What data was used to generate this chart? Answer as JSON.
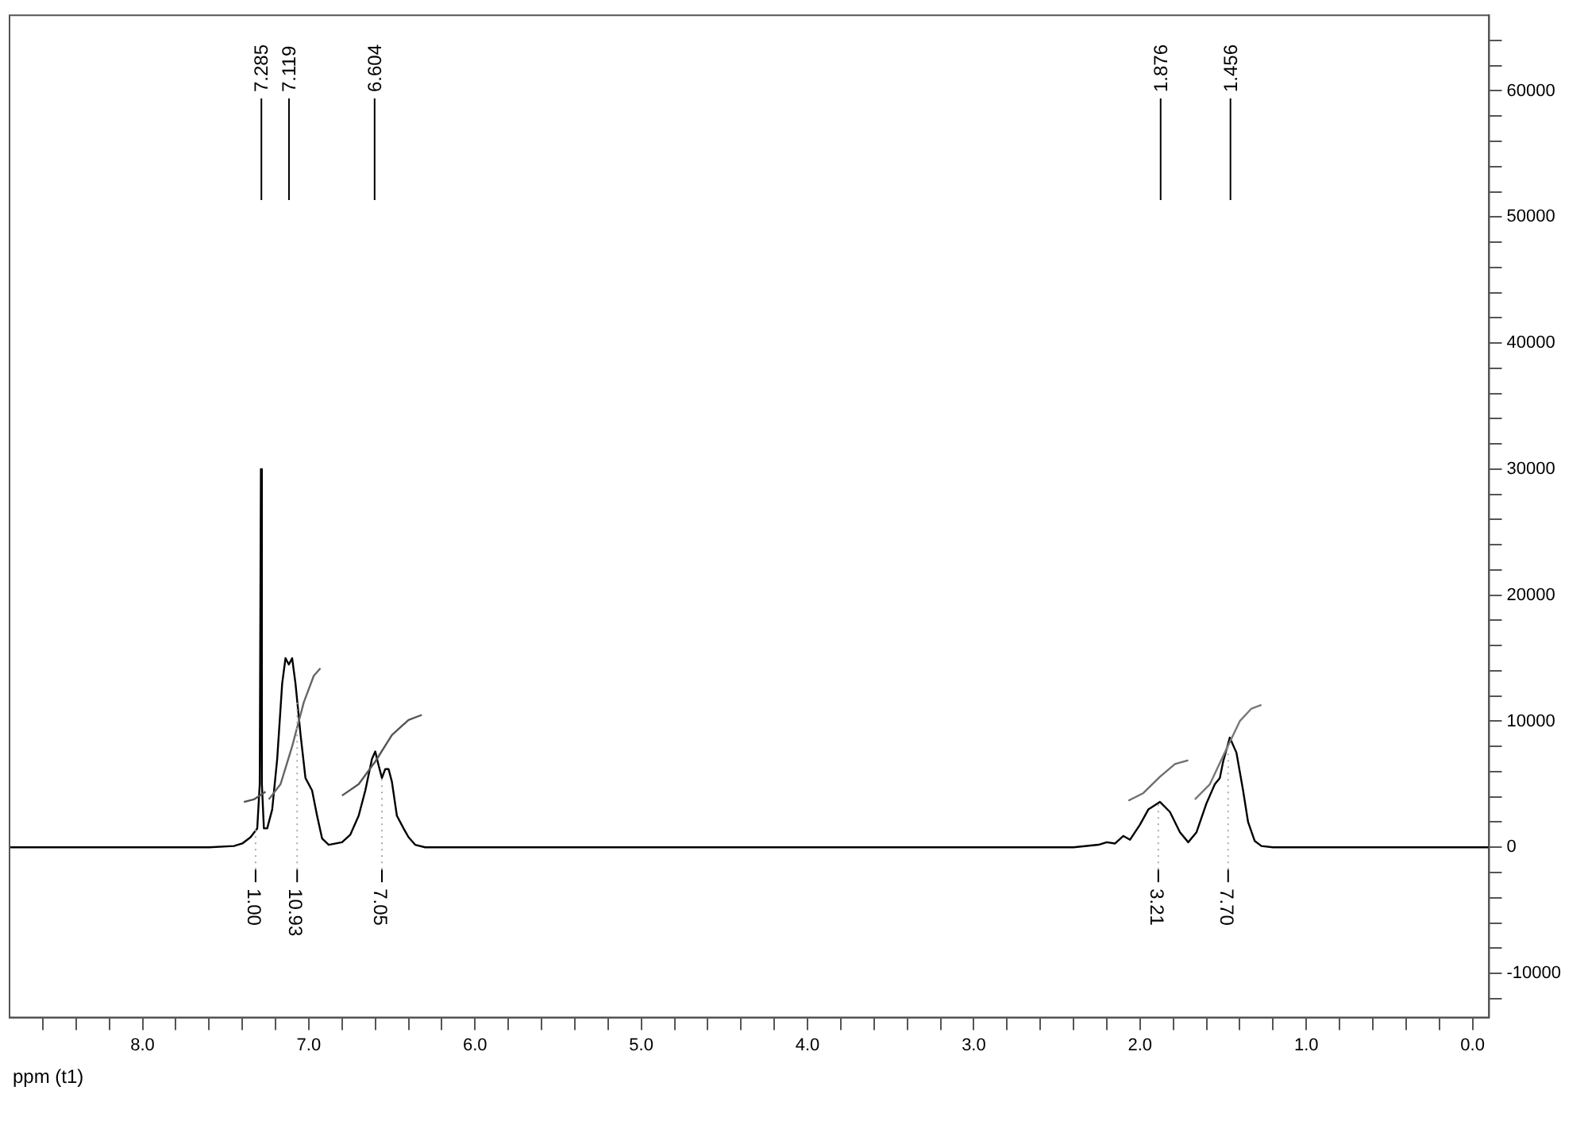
{
  "chart_data": {
    "type": "line",
    "xlabel": "ppm (t1)",
    "xlim": [
      8.8,
      -0.1
    ],
    "xticks": [
      {
        "value": 8.6,
        "label": null
      },
      {
        "value": 8.4,
        "label": null
      },
      {
        "value": 8.2,
        "label": null
      },
      {
        "value": 8.0,
        "label": "8.0"
      },
      {
        "value": 7.8,
        "label": null
      },
      {
        "value": 7.6,
        "label": null
      },
      {
        "value": 7.4,
        "label": null
      },
      {
        "value": 7.2,
        "label": null
      },
      {
        "value": 7.0,
        "label": "7.0"
      },
      {
        "value": 6.8,
        "label": null
      },
      {
        "value": 6.6,
        "label": null
      },
      {
        "value": 6.4,
        "label": null
      },
      {
        "value": 6.2,
        "label": null
      },
      {
        "value": 6.0,
        "label": "6.0"
      },
      {
        "value": 5.8,
        "label": null
      },
      {
        "value": 5.6,
        "label": null
      },
      {
        "value": 5.4,
        "label": null
      },
      {
        "value": 5.2,
        "label": null
      },
      {
        "value": 5.0,
        "label": "5.0"
      },
      {
        "value": 4.8,
        "label": null
      },
      {
        "value": 4.6,
        "label": null
      },
      {
        "value": 4.4,
        "label": null
      },
      {
        "value": 4.2,
        "label": null
      },
      {
        "value": 4.0,
        "label": "4.0"
      },
      {
        "value": 3.8,
        "label": null
      },
      {
        "value": 3.6,
        "label": null
      },
      {
        "value": 3.4,
        "label": null
      },
      {
        "value": 3.2,
        "label": null
      },
      {
        "value": 3.0,
        "label": "3.0"
      },
      {
        "value": 2.8,
        "label": null
      },
      {
        "value": 2.6,
        "label": null
      },
      {
        "value": 2.4,
        "label": null
      },
      {
        "value": 2.2,
        "label": null
      },
      {
        "value": 2.0,
        "label": "2.0"
      },
      {
        "value": 1.8,
        "label": null
      },
      {
        "value": 1.6,
        "label": null
      },
      {
        "value": 1.4,
        "label": null
      },
      {
        "value": 1.2,
        "label": null
      },
      {
        "value": 1.0,
        "label": "1.0"
      },
      {
        "value": 0.8,
        "label": null
      },
      {
        "value": 0.6,
        "label": null
      },
      {
        "value": 0.4,
        "label": null
      },
      {
        "value": 0.2,
        "label": null
      },
      {
        "value": 0.0,
        "label": "0.0"
      }
    ],
    "ylim": [
      -13500,
      66000
    ],
    "yticks": [
      {
        "value": -12000,
        "label": null
      },
      -10000,
      {
        "value": -8000,
        "label": null
      },
      {
        "value": -6000,
        "label": null
      },
      {
        "value": -4000,
        "label": null
      },
      {
        "value": -2000,
        "label": null
      },
      0,
      {
        "value": 2000,
        "label": null
      },
      {
        "value": 4000,
        "label": null
      },
      {
        "value": 6000,
        "label": null
      },
      {
        "value": 8000,
        "label": null
      },
      10000,
      {
        "value": 12000,
        "label": null
      },
      {
        "value": 14000,
        "label": null
      },
      {
        "value": 16000,
        "label": null
      },
      {
        "value": 18000,
        "label": null
      },
      20000,
      {
        "value": 22000,
        "label": null
      },
      {
        "value": 24000,
        "label": null
      },
      {
        "value": 26000,
        "label": null
      },
      {
        "value": 28000,
        "label": null
      },
      30000,
      {
        "value": 32000,
        "label": null
      },
      {
        "value": 34000,
        "label": null
      },
      {
        "value": 36000,
        "label": null
      },
      {
        "value": 38000,
        "label": null
      },
      40000,
      {
        "value": 42000,
        "label": null
      },
      {
        "value": 44000,
        "label": null
      },
      {
        "value": 46000,
        "label": null
      },
      {
        "value": 48000,
        "label": null
      },
      50000,
      {
        "value": 52000,
        "label": null
      },
      {
        "value": 54000,
        "label": null
      },
      {
        "value": 56000,
        "label": null
      },
      {
        "value": 58000,
        "label": null
      },
      60000,
      {
        "value": 62000,
        "label": null
      },
      {
        "value": 64000,
        "label": null
      }
    ],
    "grid": false,
    "legend": false,
    "marker": "none",
    "series": [
      {
        "color": "#000000",
        "x": [
          8.8,
          7.6,
          7.45,
          7.4,
          7.35,
          7.31,
          7.295,
          7.288,
          7.282,
          7.27,
          7.25,
          7.22,
          7.19,
          7.16,
          7.14,
          7.12,
          7.1,
          7.08,
          7.05,
          7.02,
          6.98,
          6.95,
          6.92,
          6.88,
          6.8,
          6.75,
          6.7,
          6.66,
          6.62,
          6.6,
          6.58,
          6.56,
          6.54,
          6.52,
          6.5,
          6.47,
          6.43,
          6.4,
          6.36,
          6.3,
          2.4,
          2.25,
          2.2,
          2.15,
          2.1,
          2.06,
          2.0,
          1.95,
          1.88,
          1.82,
          1.76,
          1.71,
          1.66,
          1.6,
          1.55,
          1.52,
          1.5,
          1.46,
          1.42,
          1.38,
          1.35,
          1.31,
          1.27,
          1.2,
          -0.1
        ],
        "values": [
          0,
          0,
          100,
          300,
          800,
          1500,
          5000,
          30000,
          5000,
          1500,
          1500,
          3000,
          7000,
          13000,
          15000,
          14500,
          15000,
          13000,
          9000,
          5500,
          4500,
          2500,
          700,
          200,
          400,
          1000,
          2500,
          4500,
          7000,
          7600,
          6500,
          5500,
          6200,
          6200,
          5200,
          2500,
          1500,
          800,
          200,
          0,
          0,
          200,
          400,
          300,
          900,
          600,
          1800,
          3000,
          3600,
          2800,
          1200,
          400,
          1200,
          3500,
          5000,
          5500,
          6800,
          8700,
          7500,
          4500,
          2000,
          500,
          100,
          0,
          0
        ]
      },
      {
        "color": "#505050",
        "x": [
          7.39,
          7.33,
          7.26
        ],
        "values": [
          3600,
          3800,
          4400
        ]
      },
      {
        "color": "#666666",
        "x": [
          7.24,
          7.17,
          7.1,
          7.03,
          6.97,
          6.93
        ],
        "values": [
          3800,
          5000,
          8000,
          11500,
          13600,
          14200
        ]
      },
      {
        "color": "#555555",
        "x": [
          6.8,
          6.7,
          6.6,
          6.5,
          6.4,
          6.32
        ],
        "values": [
          4100,
          5000,
          6800,
          8900,
          10100,
          10500
        ]
      },
      {
        "color": "#6e6e6e",
        "x": [
          2.07,
          1.98,
          1.88,
          1.79,
          1.71
        ],
        "values": [
          3700,
          4300,
          5600,
          6600,
          6900
        ]
      },
      {
        "color": "#787878",
        "x": [
          1.67,
          1.58,
          1.48,
          1.4,
          1.33,
          1.27
        ],
        "values": [
          3800,
          5000,
          7800,
          10000,
          11000,
          11300
        ]
      }
    ],
    "annotations": [
      {
        "text": "7.285",
        "x": 7.285
      },
      {
        "text": "7.119",
        "x": 7.119
      },
      {
        "text": "6.604",
        "x": 6.604
      },
      {
        "text": "1.876",
        "x": 1.876
      },
      {
        "text": "1.456",
        "x": 1.456
      },
      {
        "text": "1.00",
        "x": 7.32,
        "y": 1400
      },
      {
        "text": "10.93",
        "x": 7.07,
        "y": 11700
      },
      {
        "text": "7.05",
        "x": 6.56,
        "y": 5500
      },
      {
        "text": "3.21",
        "x": 1.89,
        "y": 3500
      },
      {
        "text": "7.70",
        "x": 1.47,
        "y": 8200
      }
    ]
  }
}
